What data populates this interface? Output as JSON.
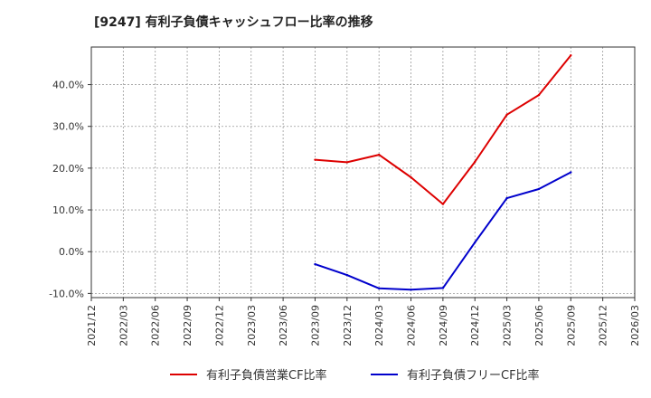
{
  "chart_data": {
    "type": "line",
    "title": "[9247]  有利子負債キャッシュフロー比率の推移",
    "xlabel": "",
    "ylabel": "",
    "x": [
      "2021/12",
      "2022/03",
      "2022/06",
      "2022/09",
      "2022/12",
      "2023/03",
      "2023/06",
      "2023/09",
      "2023/12",
      "2024/03",
      "2024/06",
      "2024/09",
      "2024/12",
      "2025/03",
      "2025/06",
      "2025/09",
      "2025/12",
      "2026/03"
    ],
    "ylim": [
      -11,
      49
    ],
    "yticks": [
      -10,
      0,
      10,
      20,
      30,
      40
    ],
    "ytick_labels": [
      "-10.0%",
      "0.0%",
      "10.0%",
      "20.0%",
      "30.0%",
      "40.0%"
    ],
    "grid": true,
    "legend_position": "bottom",
    "series": [
      {
        "name": "有利子負債営業CF比率",
        "color": "#dd0000",
        "values": [
          null,
          null,
          null,
          null,
          null,
          null,
          null,
          22.0,
          21.4,
          23.2,
          17.8,
          11.4,
          21.5,
          32.8,
          37.5,
          47.0,
          null,
          null
        ]
      },
      {
        "name": "有利子負債フリーCF比率",
        "color": "#0000cc",
        "values": [
          null,
          null,
          null,
          null,
          null,
          null,
          null,
          -3.0,
          -5.6,
          -8.8,
          -9.1,
          -8.7,
          2.2,
          12.8,
          15.0,
          19.0,
          null,
          null
        ]
      }
    ]
  }
}
